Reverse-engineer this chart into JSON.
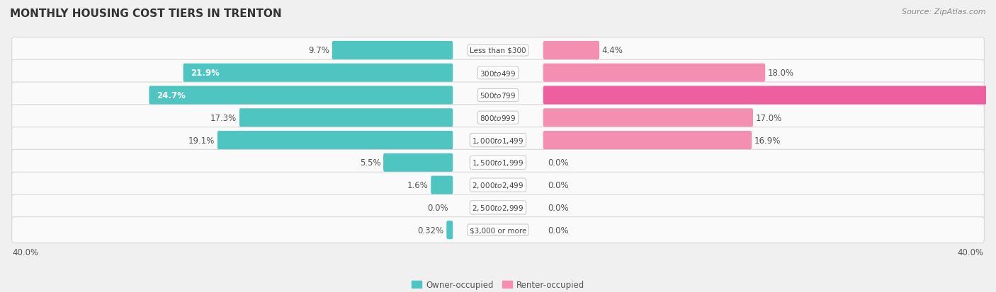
{
  "title": "MONTHLY HOUSING COST TIERS IN TRENTON",
  "source": "Source: ZipAtlas.com",
  "categories": [
    "Less than $300",
    "$300 to $499",
    "$500 to $799",
    "$800 to $999",
    "$1,000 to $1,499",
    "$1,500 to $1,999",
    "$2,000 to $2,499",
    "$2,500 to $2,999",
    "$3,000 or more"
  ],
  "owner_values": [
    9.7,
    21.9,
    24.7,
    17.3,
    19.1,
    5.5,
    1.6,
    0.0,
    0.32
  ],
  "renter_values": [
    4.4,
    18.0,
    39.9,
    17.0,
    16.9,
    0.0,
    0.0,
    0.0,
    0.0
  ],
  "owner_color": "#4EC5C1",
  "renter_color": "#F48FB1",
  "renter_color_bright": "#EE5FA0",
  "owner_label": "Owner-occupied",
  "renter_label": "Renter-occupied",
  "axis_max": 40.0,
  "background_color": "#f0f0f0",
  "bar_background": "#fafafa",
  "bar_height": 0.62,
  "label_fontsize": 8.5,
  "title_fontsize": 11,
  "source_fontsize": 8,
  "category_fontsize": 7.5,
  "axis_label_fontsize": 8.5
}
